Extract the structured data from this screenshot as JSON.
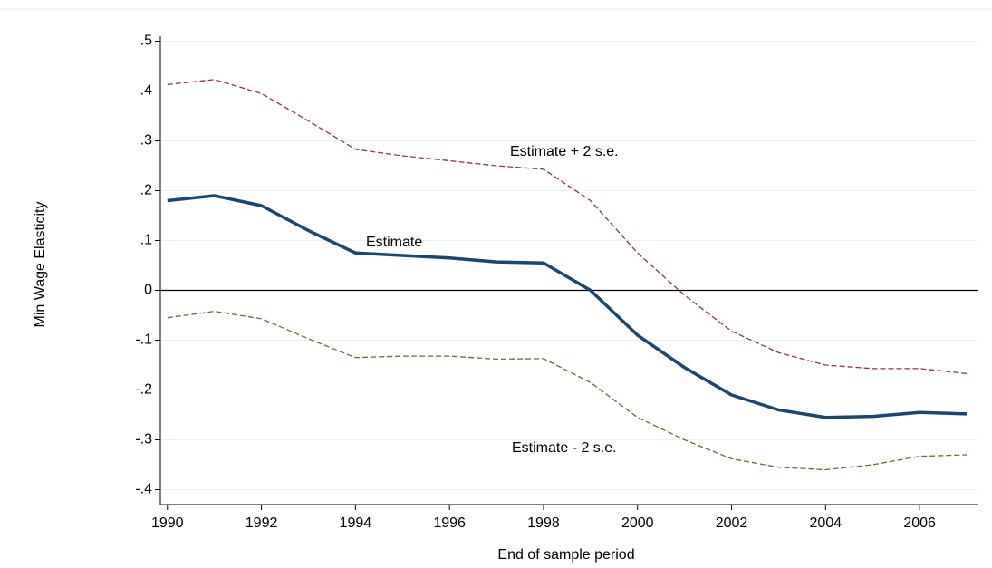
{
  "chart_data": {
    "type": "line",
    "x_label": "End of sample period",
    "y_label": "Min Wage Elasticity",
    "x": [
      1990,
      1991,
      1992,
      1993,
      1994,
      1995,
      1996,
      1997,
      1998,
      1999,
      2000,
      2001,
      2002,
      2003,
      2004,
      2005,
      2006,
      2007
    ],
    "series": [
      {
        "name": "Estimate",
        "color": "#1a476f",
        "dashed": false,
        "values": [
          0.18,
          0.19,
          0.17,
          0.12,
          0.075,
          0.07,
          0.065,
          0.057,
          0.055,
          0.0,
          -0.09,
          -0.155,
          -0.21,
          -0.24,
          -0.255,
          -0.253,
          -0.245,
          -0.248
        ]
      },
      {
        "name": "Estimate + 2 s.e.",
        "color": "#90353b",
        "dashed": true,
        "values": [
          0.413,
          0.423,
          0.395,
          0.34,
          0.283,
          0.27,
          0.26,
          0.25,
          0.243,
          0.18,
          0.075,
          -0.01,
          -0.082,
          -0.125,
          -0.15,
          -0.157,
          -0.157,
          -0.167
        ]
      },
      {
        "name": "Estimate - 2 s.e.",
        "color": "#55752f",
        "dashed": true,
        "values": [
          -0.055,
          -0.042,
          -0.057,
          -0.097,
          -0.135,
          -0.132,
          -0.132,
          -0.138,
          -0.137,
          -0.185,
          -0.255,
          -0.3,
          -0.338,
          -0.355,
          -0.36,
          -0.35,
          -0.333,
          -0.33
        ]
      }
    ],
    "xlim": [
      1989.85,
      2007.25
    ],
    "xticks": [
      1990,
      1992,
      1994,
      1996,
      1998,
      2000,
      2002,
      2004,
      2006
    ],
    "ylim": [
      -0.43,
      0.51
    ],
    "yticks": [
      {
        "value": -0.4,
        "label": "-.4"
      },
      {
        "value": -0.3,
        "label": "-.3"
      },
      {
        "value": -0.2,
        "label": "-.2"
      },
      {
        "value": -0.1,
        "label": "-.1"
      },
      0,
      {
        "value": 0.1,
        "label": ".1"
      },
      {
        "value": 0.2,
        "label": ".2"
      },
      {
        "value": 0.3,
        "label": ".3"
      },
      {
        "value": 0.4,
        "label": ".4"
      },
      {
        "value": 0.5,
        "label": ".5"
      }
    ],
    "grid": true
  }
}
